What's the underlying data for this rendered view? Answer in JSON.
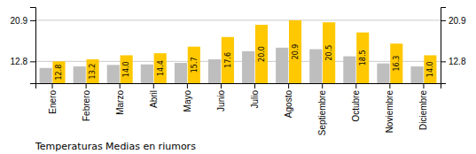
{
  "chart_data": {
    "type": "bar",
    "title": "Temperaturas Medias en riumors",
    "categories": [
      "Enero",
      "Febrero",
      "Marzo",
      "Abril",
      "Mayo",
      "Junio",
      "Julio",
      "Agosto",
      "Septiembre",
      "Octubre",
      "Noviembre",
      "Diciembre"
    ],
    "series": [
      {
        "color": "#BEBEBE",
        "values": [
          11.5,
          11.8,
          12.1,
          12.2,
          12.5,
          13.2,
          14.8,
          15.5,
          15.2,
          13.8,
          12.4,
          11.8
        ]
      },
      {
        "color": "#FFC800",
        "values": [
          12.8,
          13.2,
          14.0,
          14.4,
          15.7,
          17.6,
          20.0,
          20.9,
          20.5,
          18.5,
          16.3,
          14.0
        ],
        "data_labels": true,
        "value_labels": [
          "12.8",
          "13.2",
          "14.0",
          "14.4",
          "15.7",
          "17.6",
          "20.0",
          "20.9",
          "20.5",
          "18.5",
          "16.3",
          "14.0"
        ]
      }
    ],
    "ylim": [
      8.5,
      23.5
    ],
    "yticks": [
      12.8,
      20.9
    ],
    "y2lim": [
      8.5,
      23.5
    ],
    "y2ticks": [
      12.8,
      20.9
    ],
    "grid": true
  }
}
